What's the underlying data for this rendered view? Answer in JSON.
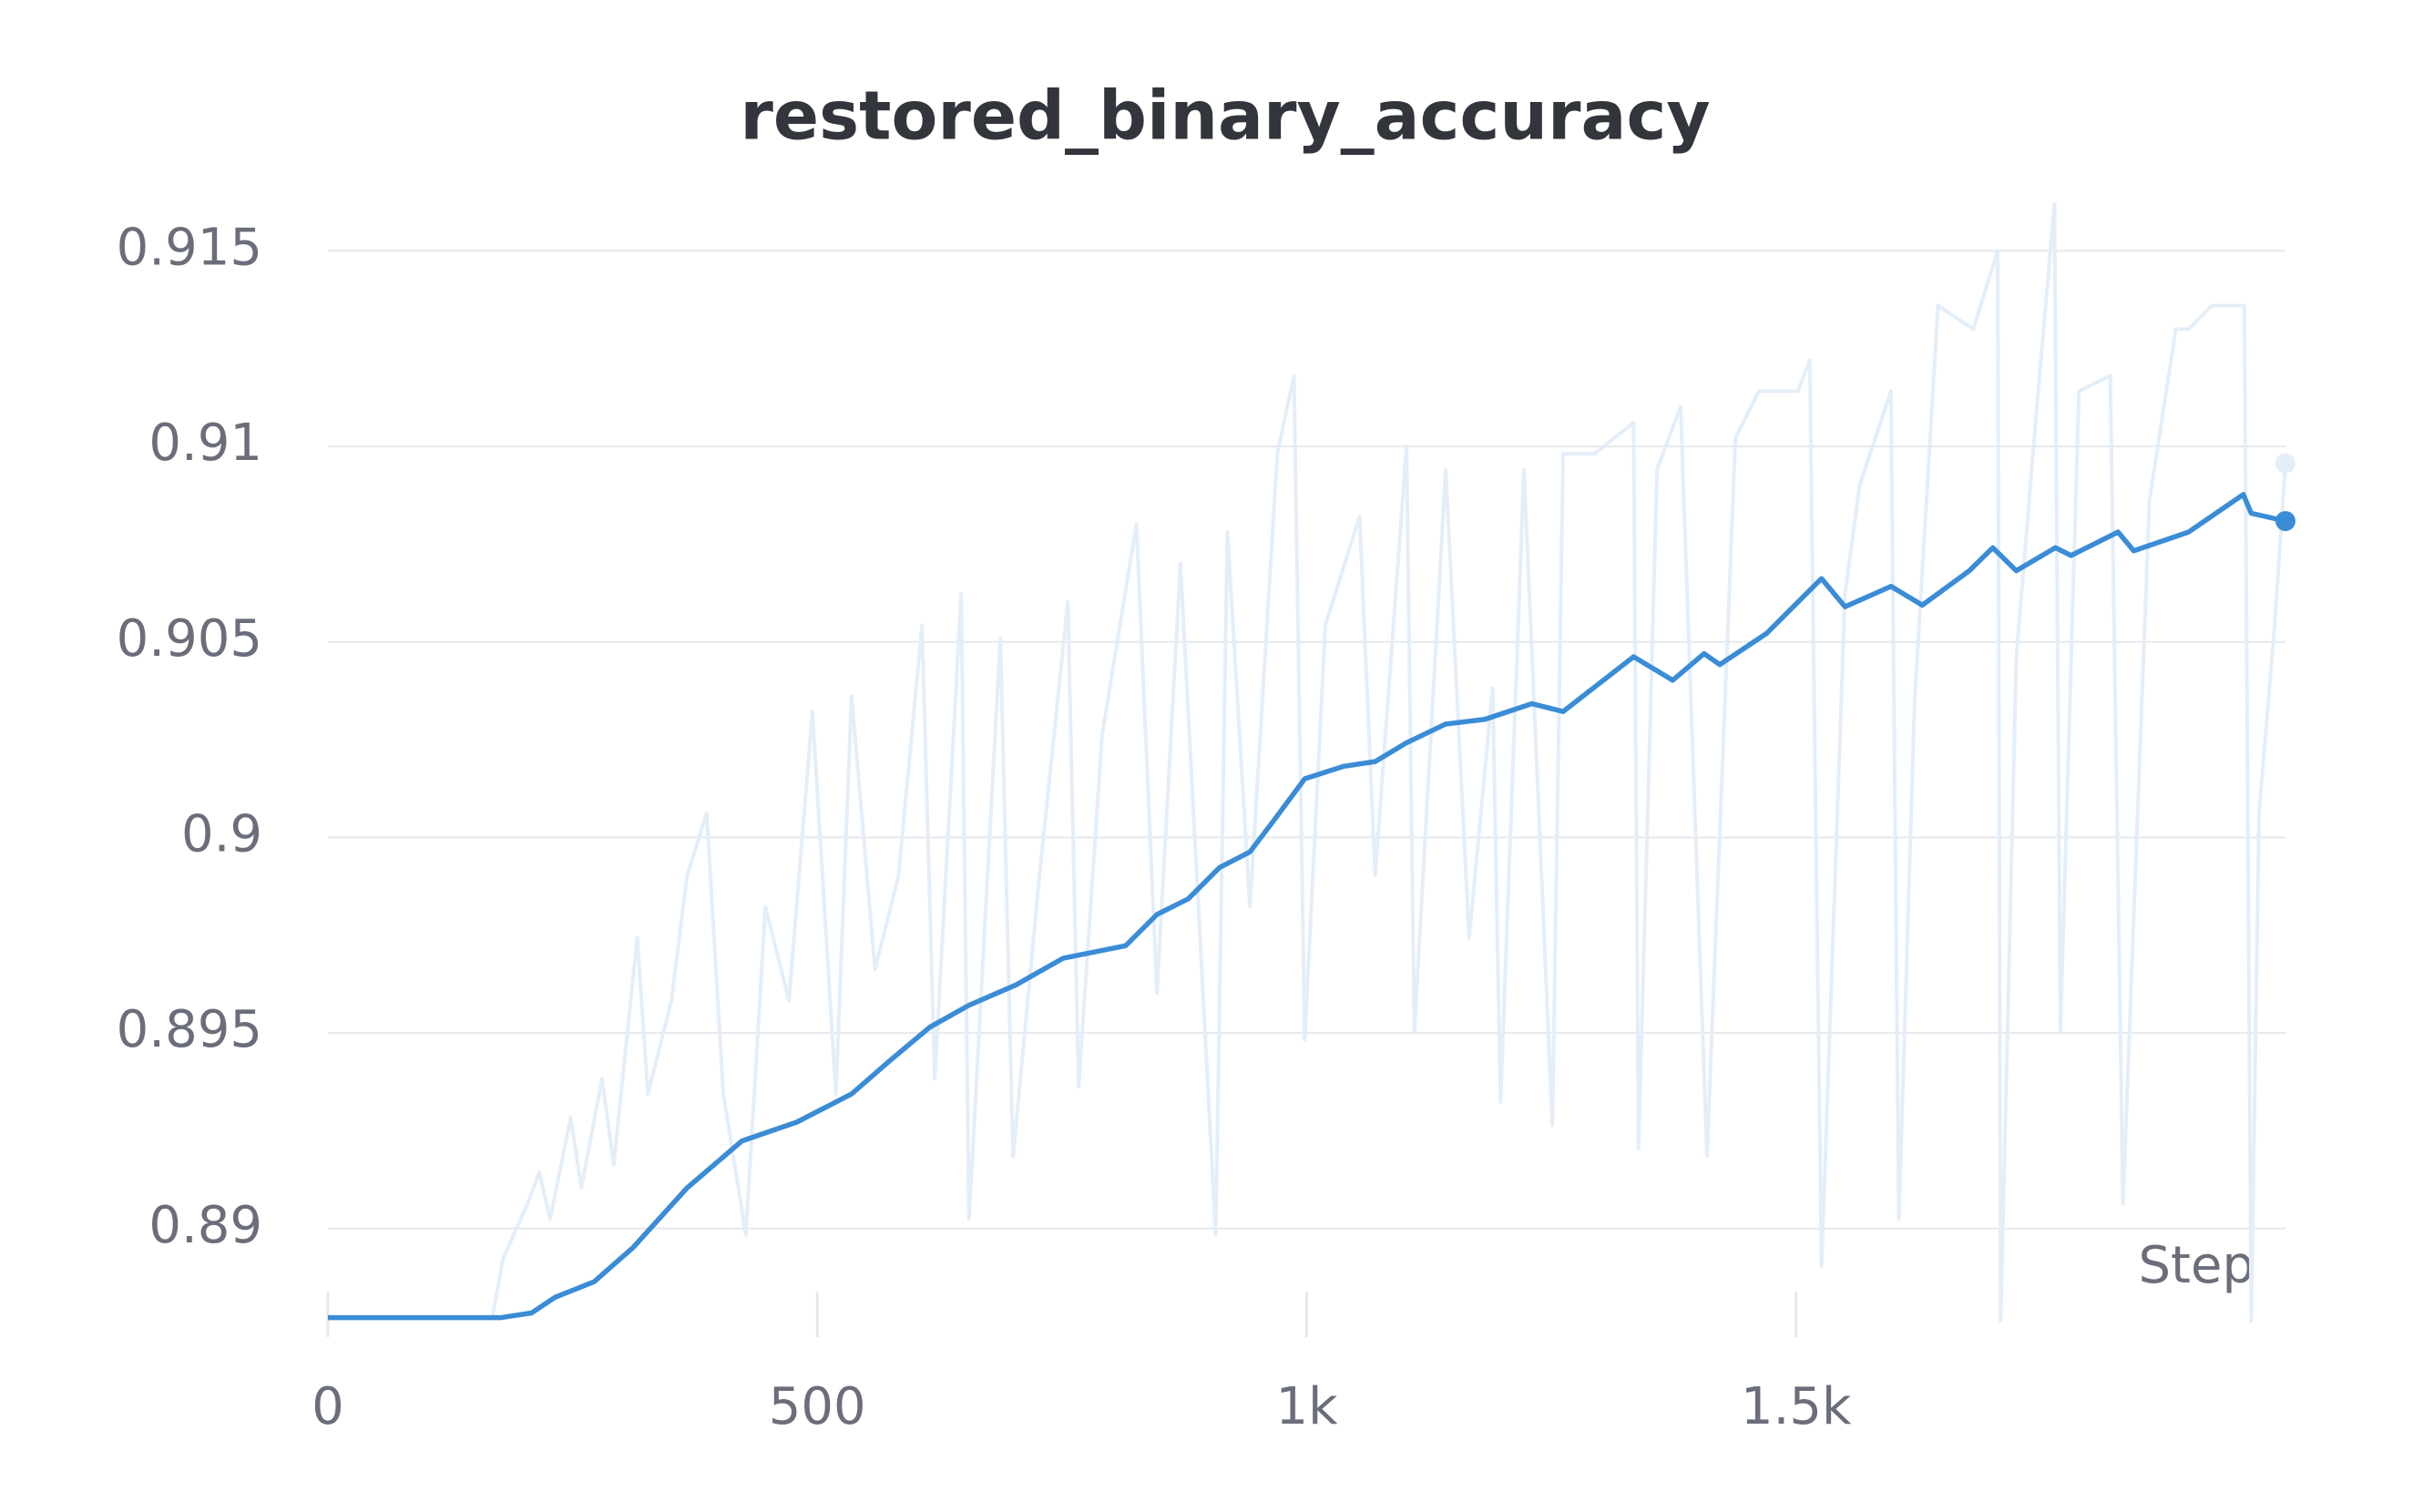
{
  "chart_data": {
    "type": "line",
    "title": "restored_binary_accuracy",
    "x_label": "Step",
    "xlim": [
      0,
      2000
    ],
    "ylim": [
      0.8872,
      0.9165
    ],
    "xticks": [
      0,
      500,
      {
        "value": 1000,
        "label": "1k"
      },
      {
        "value": 1500,
        "label": "1.5k"
      }
    ],
    "yticks": [
      0.89,
      0.895,
      0.9,
      0.905,
      0.91,
      0.915
    ],
    "grid": true,
    "series": [
      {
        "color": "#e3eef9",
        "x": [
          0,
          168,
          179,
          204,
          216,
          227,
          248,
          259,
          280,
          292,
          316,
          327,
          351,
          367,
          387,
          404,
          427,
          447,
          471,
          495,
          519,
          535,
          559,
          583,
          607,
          620,
          647,
          655,
          687,
          700,
          727,
          756,
          767,
          791,
          826,
          847,
          871,
          907,
          919,
          942,
          970,
          987,
          998,
          1019,
          1054,
          1070,
          1102,
          1110,
          1142,
          1166,
          1190,
          1198,
          1222,
          1251,
          1262,
          1294,
          1334,
          1339,
          1358,
          1382,
          1409,
          1438,
          1462,
          1502,
          1514,
          1526,
          1550,
          1565,
          1597,
          1605,
          1621,
          1645,
          1681,
          1706,
          1709,
          1725,
          1746,
          1764,
          1770,
          1789,
          1821,
          1834,
          1861,
          1888,
          1901,
          1925,
          1958,
          1965,
          1973,
          1989,
          2000
        ],
        "values": [
          0.88772,
          0.88772,
          0.88924,
          0.89064,
          0.89144,
          0.89024,
          0.89284,
          0.89104,
          0.89383,
          0.89164,
          0.89743,
          0.89344,
          0.89583,
          0.89903,
          0.90062,
          0.89344,
          0.88984,
          0.89823,
          0.89583,
          0.90322,
          0.89344,
          0.90362,
          0.89663,
          0.89903,
          0.90542,
          0.89383,
          0.90622,
          0.89024,
          0.9051,
          0.89184,
          0.89903,
          0.90602,
          0.89363,
          0.90262,
          0.90801,
          0.89603,
          0.90701,
          0.88984,
          0.90781,
          0.89823,
          0.90981,
          0.91181,
          0.89483,
          0.90542,
          0.90821,
          0.89903,
          0.91001,
          0.89503,
          0.90941,
          0.89743,
          0.90382,
          0.89324,
          0.90941,
          0.89264,
          0.90981,
          0.90981,
          0.91061,
          0.89204,
          0.90941,
          0.91101,
          0.89184,
          0.91021,
          0.91141,
          0.91141,
          0.91221,
          0.88904,
          0.90622,
          0.90901,
          0.91141,
          0.89024,
          0.90342,
          0.9136,
          0.913,
          0.915,
          0.88764,
          0.90462,
          0.91101,
          0.9162,
          0.89503,
          0.91141,
          0.91181,
          0.89064,
          0.90861,
          0.913,
          0.913,
          0.9136,
          0.9136,
          0.88764,
          0.90062,
          0.90542,
          0.90957
        ]
      },
      {
        "color": "#3a8cd6",
        "x": [
          0,
          176,
          208,
          232,
          272,
          312,
          367,
          423,
          479,
          535,
          575,
          615,
          655,
          703,
          751,
          815,
          847,
          879,
          911,
          942,
          966,
          998,
          1038,
          1070,
          1102,
          1142,
          1182,
          1230,
          1262,
          1334,
          1374,
          1406,
          1422,
          1470,
          1526,
          1550,
          1597,
          1629,
          1677,
          1701,
          1725,
          1765,
          1781,
          1829,
          1845,
          1901,
          1957,
          1965,
          2000
        ],
        "values": [
          0.88772,
          0.88772,
          0.88784,
          0.88824,
          0.88864,
          0.88952,
          0.89104,
          0.89224,
          0.89272,
          0.89344,
          0.89431,
          0.89515,
          0.89571,
          0.89623,
          0.89691,
          0.89723,
          0.89803,
          0.89843,
          0.89923,
          0.89963,
          0.90042,
          0.9015,
          0.90182,
          0.90194,
          0.90242,
          0.9029,
          0.90302,
          0.90342,
          0.90322,
          0.90462,
          0.90402,
          0.9047,
          0.90442,
          0.90522,
          0.90662,
          0.9059,
          0.90642,
          0.90594,
          0.90682,
          0.90741,
          0.90682,
          0.90741,
          0.90721,
          0.90781,
          0.90733,
          0.90781,
          0.90877,
          0.90829,
          0.90809
        ]
      }
    ]
  }
}
